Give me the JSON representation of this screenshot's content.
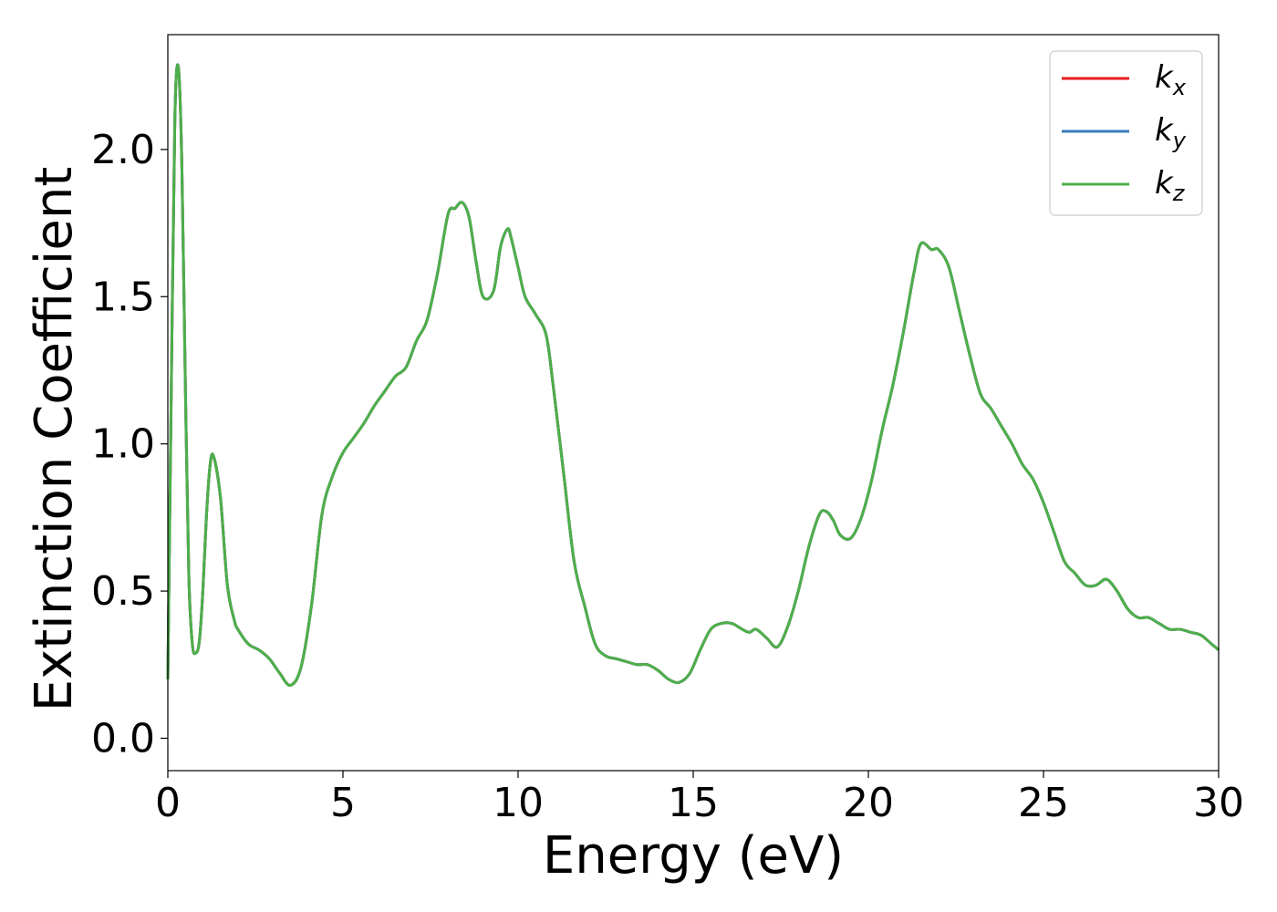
{
  "chart_data": {
    "type": "line",
    "xlabel": "Energy (eV)",
    "ylabel": "Extinction Coefficient",
    "xlim": [
      0,
      30
    ],
    "ylim": [
      -0.11,
      2.39
    ],
    "xticks": [
      0,
      5,
      10,
      15,
      20,
      25,
      30
    ],
    "xtick_labels": [
      "0",
      "5",
      "10",
      "15",
      "20",
      "25",
      "30"
    ],
    "yticks": [
      0.0,
      0.5,
      1.0,
      1.5,
      2.0
    ],
    "ytick_labels": [
      "0.0",
      "0.5",
      "1.0",
      "1.5",
      "2.0"
    ],
    "grid": false,
    "legend_position": "top-right",
    "x": [
      0.0,
      0.1,
      0.2,
      0.3,
      0.4,
      0.5,
      0.6,
      0.7,
      0.8,
      0.9,
      1.0,
      1.1,
      1.2,
      1.3,
      1.5,
      1.7,
      1.9,
      2.0,
      2.3,
      2.6,
      2.9,
      3.2,
      3.5,
      3.8,
      4.1,
      4.4,
      4.7,
      5.0,
      5.3,
      5.6,
      5.9,
      6.2,
      6.5,
      6.8,
      7.1,
      7.4,
      7.7,
      8.0,
      8.2,
      8.4,
      8.6,
      8.8,
      9.0,
      9.3,
      9.5,
      9.7,
      9.8,
      10.0,
      10.2,
      10.5,
      10.8,
      11.0,
      11.3,
      11.6,
      11.9,
      12.2,
      12.5,
      12.8,
      13.1,
      13.4,
      13.7,
      14.0,
      14.3,
      14.6,
      14.9,
      15.2,
      15.5,
      15.8,
      16.1,
      16.4,
      16.6,
      16.8,
      17.1,
      17.4,
      17.7,
      18.0,
      18.3,
      18.6,
      18.8,
      19.0,
      19.2,
      19.5,
      19.8,
      20.1,
      20.4,
      20.7,
      21.0,
      21.3,
      21.5,
      21.8,
      22.0,
      22.3,
      22.6,
      22.9,
      23.2,
      23.5,
      23.8,
      24.1,
      24.4,
      24.7,
      25.0,
      25.3,
      25.6,
      25.9,
      26.2,
      26.5,
      26.8,
      27.1,
      27.4,
      27.7,
      28.0,
      28.3,
      28.6,
      28.9,
      29.2,
      29.5,
      29.8,
      30.0
    ],
    "series": [
      {
        "name": "kx",
        "name_base": "k",
        "name_sub": "x",
        "color": "#e41a1c",
        "values": [
          0.2,
          1.2,
          2.1,
          2.28,
          1.95,
          1.2,
          0.55,
          0.32,
          0.29,
          0.33,
          0.5,
          0.75,
          0.92,
          0.96,
          0.82,
          0.52,
          0.4,
          0.37,
          0.32,
          0.3,
          0.27,
          0.22,
          0.18,
          0.24,
          0.45,
          0.76,
          0.89,
          0.97,
          1.02,
          1.07,
          1.13,
          1.18,
          1.23,
          1.26,
          1.35,
          1.42,
          1.58,
          1.78,
          1.8,
          1.82,
          1.77,
          1.62,
          1.5,
          1.52,
          1.67,
          1.73,
          1.7,
          1.6,
          1.5,
          1.44,
          1.37,
          1.2,
          0.9,
          0.6,
          0.45,
          0.32,
          0.28,
          0.27,
          0.26,
          0.25,
          0.25,
          0.23,
          0.2,
          0.19,
          0.22,
          0.3,
          0.37,
          0.39,
          0.39,
          0.37,
          0.36,
          0.37,
          0.34,
          0.31,
          0.38,
          0.5,
          0.65,
          0.76,
          0.77,
          0.74,
          0.69,
          0.68,
          0.75,
          0.88,
          1.05,
          1.2,
          1.38,
          1.58,
          1.68,
          1.66,
          1.66,
          1.6,
          1.45,
          1.3,
          1.17,
          1.12,
          1.06,
          1.0,
          0.93,
          0.88,
          0.8,
          0.7,
          0.6,
          0.56,
          0.52,
          0.52,
          0.54,
          0.5,
          0.44,
          0.41,
          0.41,
          0.39,
          0.37,
          0.37,
          0.36,
          0.35,
          0.32,
          0.3
        ]
      },
      {
        "name": "ky",
        "name_base": "k",
        "name_sub": "y",
        "color": "#377eb8",
        "values": [
          0.2,
          1.2,
          2.1,
          2.28,
          1.95,
          1.2,
          0.55,
          0.32,
          0.29,
          0.33,
          0.5,
          0.75,
          0.92,
          0.96,
          0.82,
          0.52,
          0.4,
          0.37,
          0.32,
          0.3,
          0.27,
          0.22,
          0.18,
          0.24,
          0.45,
          0.76,
          0.89,
          0.97,
          1.02,
          1.07,
          1.13,
          1.18,
          1.23,
          1.26,
          1.35,
          1.42,
          1.58,
          1.78,
          1.8,
          1.82,
          1.77,
          1.62,
          1.5,
          1.52,
          1.67,
          1.73,
          1.7,
          1.6,
          1.5,
          1.44,
          1.37,
          1.2,
          0.9,
          0.6,
          0.45,
          0.32,
          0.28,
          0.27,
          0.26,
          0.25,
          0.25,
          0.23,
          0.2,
          0.19,
          0.22,
          0.3,
          0.37,
          0.39,
          0.39,
          0.37,
          0.36,
          0.37,
          0.34,
          0.31,
          0.38,
          0.5,
          0.65,
          0.76,
          0.77,
          0.74,
          0.69,
          0.68,
          0.75,
          0.88,
          1.05,
          1.2,
          1.38,
          1.58,
          1.68,
          1.66,
          1.66,
          1.6,
          1.45,
          1.3,
          1.17,
          1.12,
          1.06,
          1.0,
          0.93,
          0.88,
          0.8,
          0.7,
          0.6,
          0.56,
          0.52,
          0.52,
          0.54,
          0.5,
          0.44,
          0.41,
          0.41,
          0.39,
          0.37,
          0.37,
          0.36,
          0.35,
          0.32,
          0.3
        ]
      },
      {
        "name": "kz",
        "name_base": "k",
        "name_sub": "z",
        "color": "#4daf4a",
        "values": [
          0.2,
          1.2,
          2.1,
          2.28,
          1.95,
          1.2,
          0.55,
          0.32,
          0.29,
          0.33,
          0.5,
          0.75,
          0.92,
          0.96,
          0.82,
          0.52,
          0.4,
          0.37,
          0.32,
          0.3,
          0.27,
          0.22,
          0.18,
          0.24,
          0.45,
          0.76,
          0.89,
          0.97,
          1.02,
          1.07,
          1.13,
          1.18,
          1.23,
          1.26,
          1.35,
          1.42,
          1.58,
          1.78,
          1.8,
          1.82,
          1.77,
          1.62,
          1.5,
          1.52,
          1.67,
          1.73,
          1.7,
          1.6,
          1.5,
          1.44,
          1.37,
          1.2,
          0.9,
          0.6,
          0.45,
          0.32,
          0.28,
          0.27,
          0.26,
          0.25,
          0.25,
          0.23,
          0.2,
          0.19,
          0.22,
          0.3,
          0.37,
          0.39,
          0.39,
          0.37,
          0.36,
          0.37,
          0.34,
          0.31,
          0.38,
          0.5,
          0.65,
          0.76,
          0.77,
          0.74,
          0.69,
          0.68,
          0.75,
          0.88,
          1.05,
          1.2,
          1.38,
          1.58,
          1.68,
          1.66,
          1.66,
          1.6,
          1.45,
          1.3,
          1.17,
          1.12,
          1.06,
          1.0,
          0.93,
          0.88,
          0.8,
          0.7,
          0.6,
          0.56,
          0.52,
          0.52,
          0.54,
          0.5,
          0.44,
          0.41,
          0.41,
          0.39,
          0.37,
          0.37,
          0.36,
          0.35,
          0.32,
          0.3
        ]
      }
    ]
  }
}
